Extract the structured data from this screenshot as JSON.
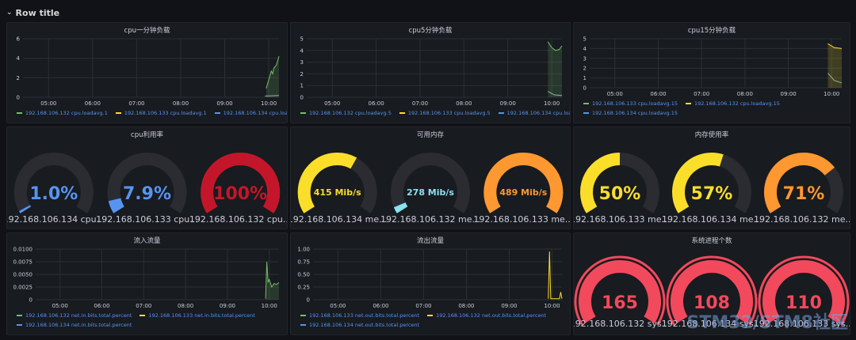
{
  "row": {
    "title": "Row title"
  },
  "time_ticks": [
    "05:00",
    "06:00",
    "07:00",
    "08:00",
    "09:00",
    "10:00"
  ],
  "colors": {
    "green": "#73bf69",
    "yellow": "#fade2a",
    "blue": "#5794f2",
    "teal": "#8ab8a3",
    "red": "#c4162a",
    "orange": "#ff9830",
    "gauge_track": "#2a2c31"
  },
  "panels": {
    "cpu1": {
      "title": "cpu一分钟负载",
      "y_ticks": [
        "6",
        "4",
        "2",
        "0"
      ],
      "legend": [
        {
          "label": "192.168.106.132 cpu.loadavg.1",
          "color": "#73bf69"
        },
        {
          "label": "192.168.106.133 cpu.loadavg.1",
          "color": "#fade2a"
        },
        {
          "label": "192.168.106.134 cpu.loadavg.1",
          "color": "#5794f2"
        }
      ]
    },
    "cpu5": {
      "title": "cpu5分钟负载",
      "y_ticks": [
        "5",
        "4",
        "3",
        "2",
        "1",
        "0"
      ],
      "legend": [
        {
          "label": "192.168.106.132 cpu.loadavg.5",
          "color": "#73bf69"
        },
        {
          "label": "192.168.106.133 cpu.loadavg.5",
          "color": "#fade2a"
        },
        {
          "label": "192.168.106.134 cpu.loadavg.5",
          "color": "#5794f2"
        }
      ]
    },
    "cpu15": {
      "title": "cpu15分钟负载",
      "y_ticks": [
        "5",
        "4",
        "3",
        "2",
        "1",
        "0"
      ],
      "legend": [
        {
          "label": "192.168.106.133 cpu.loadavg.15",
          "color": "#73bf69"
        },
        {
          "label": "192.168.106.132 cpu.loadavg.15",
          "color": "#fade2a"
        },
        {
          "label": "192.168.106.134 cpu.loadavg.15",
          "color": "#5794f2"
        }
      ]
    },
    "cpu_usage": {
      "title": "cpu利用率",
      "gauges": [
        {
          "value": "1.0%",
          "fraction": 0.01,
          "color": "#5794f2",
          "label": "192.168.106.134 cpu..."
        },
        {
          "value": "7.9%",
          "fraction": 0.079,
          "color": "#5794f2",
          "label": "192.168.106.133 cpu..."
        },
        {
          "value": "100%",
          "fraction": 1.0,
          "color": "#c4162a",
          "label": "192.168.106.132 cpu..."
        }
      ]
    },
    "mem_avail": {
      "title": "可用内存",
      "gauges": [
        {
          "value": "415 Mib/s",
          "fraction": 0.62,
          "color": "#fade2a",
          "label": "192.168.106.134 me..."
        },
        {
          "value": "278 Mib/s",
          "fraction": 0.04,
          "color": "#8ae1f3",
          "label": "192.168.106.132 me..."
        },
        {
          "value": "489 Mib/s",
          "fraction": 1.0,
          "color": "#ff9830",
          "label": "192.168.106.133 me..."
        }
      ]
    },
    "mem_usage": {
      "title": "内存使用率",
      "gauges": [
        {
          "value": "50%",
          "fraction": 0.5,
          "color": "#fade2a",
          "label": "192.168.106.133 me..."
        },
        {
          "value": "57%",
          "fraction": 0.57,
          "color": "#fade2a",
          "label": "192.168.106.134 me..."
        },
        {
          "value": "71%",
          "fraction": 0.71,
          "color": "#ff9830",
          "label": "192.168.106.132 me..."
        }
      ]
    },
    "net_in": {
      "title": "流入流量",
      "y_ticks": [
        "0.0100",
        "0.0075",
        "0.0050",
        "0.0025",
        "0"
      ],
      "legend": [
        {
          "label": "192.168.106.132 net.in.bits.total.percent",
          "color": "#73bf69"
        },
        {
          "label": "192.168.106.133 net.in.bits.total.percent",
          "color": "#fade2a"
        },
        {
          "label": "192.168.106.134 net.in.bits.total.percent",
          "color": "#5794f2"
        }
      ]
    },
    "net_out": {
      "title": "流出流量",
      "y_ticks": [
        "1.00",
        "0.75",
        "0.50",
        "0.25",
        "0"
      ],
      "legend": [
        {
          "label": "192.168.106.133 net.out.bits.total.percent",
          "color": "#73bf69"
        },
        {
          "label": "192.168.106.132 net.out.bits.total.percent",
          "color": "#fade2a"
        },
        {
          "label": "192.168.106.134 net.out.bits.total.percent",
          "color": "#5794f2"
        }
      ]
    },
    "procs": {
      "title": "系统进程个数",
      "gauges": [
        {
          "value": "165",
          "fraction": 1.0,
          "color": "#f2495c",
          "label": "192.168.106.132 sys..."
        },
        {
          "value": "108",
          "fraction": 1.0,
          "color": "#f2495c",
          "label": "192.168.106.134 sys..."
        },
        {
          "value": "110",
          "fraction": 1.0,
          "color": "#f2495c",
          "label": "192.168.106.133 sys..."
        }
      ]
    }
  },
  "watermark": {
    "line1": "STM32/STM8社区",
    "line2": "www.stmcu.org.cn"
  }
}
